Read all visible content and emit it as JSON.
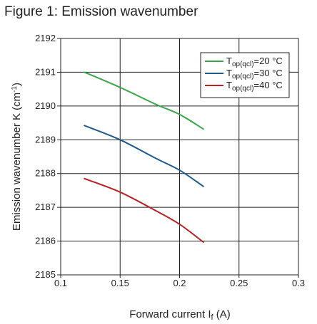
{
  "figure": {
    "title": "Figure 1: Emission wavenumber"
  },
  "chart_data": {
    "type": "line",
    "title": "Figure 1: Emission wavenumber",
    "xlabel": "Forward current I",
    "xlabel_sub": "f",
    "xlabel_unit": " (A)",
    "ylabel": "Emission wavenumber K (cm",
    "ylabel_sup": "-1",
    "ylabel_end": ")",
    "xlim": [
      0.1,
      0.3
    ],
    "ylim": [
      2185,
      2192
    ],
    "x_ticks": [
      0.1,
      0.15,
      0.2,
      0.25,
      0.3
    ],
    "x_tick_labels": [
      "0.1",
      "0.15",
      "0.2",
      "0.25",
      "0.3"
    ],
    "y_ticks": [
      2185,
      2186,
      2187,
      2188,
      2189,
      2190,
      2191,
      2192
    ],
    "y_tick_labels": [
      "2185",
      "2186",
      "2187",
      "2188",
      "2189",
      "2190",
      "2191",
      "2192"
    ],
    "grid": true,
    "legend_position": "top-right",
    "series": [
      {
        "name": "T",
        "name_sub": "op(qcl)",
        "name_end": "=20 °C",
        "color": "#3aa64a",
        "x": [
          0.12,
          0.15,
          0.18,
          0.2,
          0.22
        ],
        "y": [
          2191.0,
          2190.55,
          2190.05,
          2189.75,
          2189.32
        ]
      },
      {
        "name": "T",
        "name_sub": "op(qcl)",
        "name_end": "=30 °C",
        "color": "#1d5a8e",
        "x": [
          0.12,
          0.15,
          0.18,
          0.2,
          0.22
        ],
        "y": [
          2189.42,
          2189.0,
          2188.45,
          2188.1,
          2187.62
        ]
      },
      {
        "name": "T",
        "name_sub": "op(qcl)",
        "name_end": "=40 °C",
        "color": "#b82025",
        "x": [
          0.12,
          0.15,
          0.18,
          0.2,
          0.22
        ],
        "y": [
          2187.85,
          2187.45,
          2186.9,
          2186.5,
          2185.97
        ]
      }
    ]
  }
}
